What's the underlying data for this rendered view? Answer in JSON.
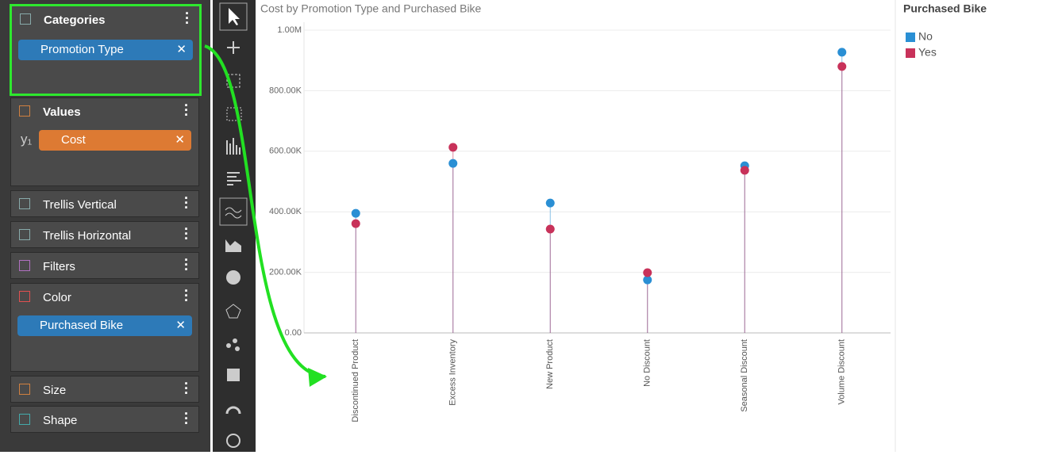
{
  "panel": {
    "sections": [
      {
        "title": "Categories",
        "field": "Promotion Type"
      },
      {
        "title": "Values",
        "axis": "y₁",
        "field": "Cost"
      },
      {
        "title": "Trellis Vertical"
      },
      {
        "title": "Trellis Horizontal"
      },
      {
        "title": "Filters"
      },
      {
        "title": "Color",
        "field": "Purchased Bike"
      },
      {
        "title": "Size"
      },
      {
        "title": "Shape"
      }
    ]
  },
  "chart_data": {
    "type": "lollipop",
    "title": "Cost by Promotion Type and Purchased Bike",
    "legend_title": "Purchased Bike",
    "categories": [
      "Discontinued Product",
      "Excess Inventory",
      "New Product",
      "No Discount",
      "Seasonal Discount",
      "Volume Discount"
    ],
    "series": [
      {
        "name": "No",
        "color": "#2a8fd4",
        "values": [
          395000,
          560000,
          429000,
          175000,
          552000,
          927000
        ]
      },
      {
        "name": "Yes",
        "color": "#c8325a",
        "values": [
          361000,
          613000,
          343000,
          199000,
          537000,
          880000
        ]
      }
    ],
    "ylim": [
      0,
      1000000
    ],
    "yticks": [
      {
        "value": 0,
        "label": "0.00"
      },
      {
        "value": 200000,
        "label": "200.00K"
      },
      {
        "value": 400000,
        "label": "400.00K"
      },
      {
        "value": 600000,
        "label": "600.00K"
      },
      {
        "value": 800000,
        "label": "800.00K"
      },
      {
        "value": 1000000,
        "label": "1.00M"
      }
    ],
    "grid": true
  }
}
